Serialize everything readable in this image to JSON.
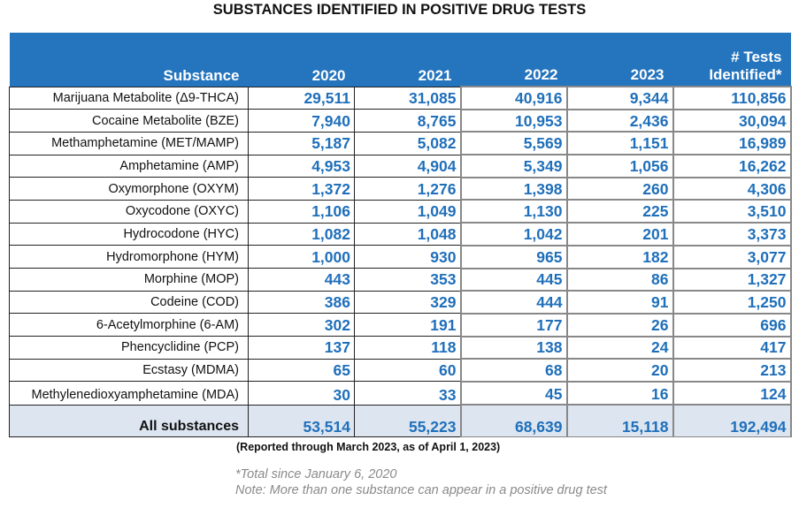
{
  "title": "SUBSTANCES IDENTIFIED IN POSITIVE DRUG TESTS",
  "headers": [
    "Substance",
    "2020",
    "2021",
    "2022",
    "2023",
    "# Tests",
    "Identified*"
  ],
  "rows": [
    {
      "name": "Marijuana Metabolite (Δ9-THCA)",
      "values": [
        "29,511",
        "31,085",
        "40,916",
        "9,344",
        "110,856"
      ]
    },
    {
      "name": "Cocaine Metabolite (BZE)",
      "values": [
        "7,940",
        "8,765",
        "10,953",
        "2,436",
        "30,094"
      ]
    },
    {
      "name": "Methamphetamine (MET/MAMP)",
      "values": [
        "5,187",
        "5,082",
        "5,569",
        "1,151",
        "16,989"
      ]
    },
    {
      "name": "Amphetamine (AMP)",
      "values": [
        "4,953",
        "4,904",
        "5,349",
        "1,056",
        "16,262"
      ]
    },
    {
      "name": "Oxymorphone (OXYM)",
      "values": [
        "1,372",
        "1,276",
        "1,398",
        "260",
        "4,306"
      ]
    },
    {
      "name": "Oxycodone (OXYC)",
      "values": [
        "1,106",
        "1,049",
        "1,130",
        "225",
        "3,510"
      ]
    },
    {
      "name": "Hydrocodone (HYC)",
      "values": [
        "1,082",
        "1,048",
        "1,042",
        "201",
        "3,373"
      ]
    },
    {
      "name": "Hydromorphone (HYM)",
      "values": [
        "1,000",
        "930",
        "965",
        "182",
        "3,077"
      ]
    },
    {
      "name": "Morphine (MOP)",
      "values": [
        "443",
        "353",
        "445",
        "86",
        "1,327"
      ]
    },
    {
      "name": "Codeine (COD)",
      "values": [
        "386",
        "329",
        "444",
        "91",
        "1,250"
      ]
    },
    {
      "name": "6-Acetylmorphine (6-AM)",
      "values": [
        "302",
        "191",
        "177",
        "26",
        "696"
      ]
    },
    {
      "name": "Phencyclidine (PCP)",
      "values": [
        "137",
        "118",
        "138",
        "24",
        "417"
      ]
    },
    {
      "name": "Ecstasy (MDMA)",
      "values": [
        "65",
        "60",
        "68",
        "20",
        "213"
      ]
    },
    {
      "name": "Methylenedioxyamphetamine (MDA)",
      "values": [
        "30",
        "33",
        "45",
        "16",
        "124"
      ]
    }
  ],
  "total": {
    "name": "All substances",
    "values": [
      "53,514",
      "55,223",
      "68,639",
      "15,118",
      "192,494"
    ]
  },
  "reported": "(Reported through March 2023, as of April 1, 2023)",
  "footnote": "*Total since January 6, 2020",
  "note": "Note: More than one substance can appear in a positive drug test",
  "colors": {
    "header_bg": "#2474be",
    "number": "#1f6fba",
    "total_bg": "#dce5f0"
  }
}
